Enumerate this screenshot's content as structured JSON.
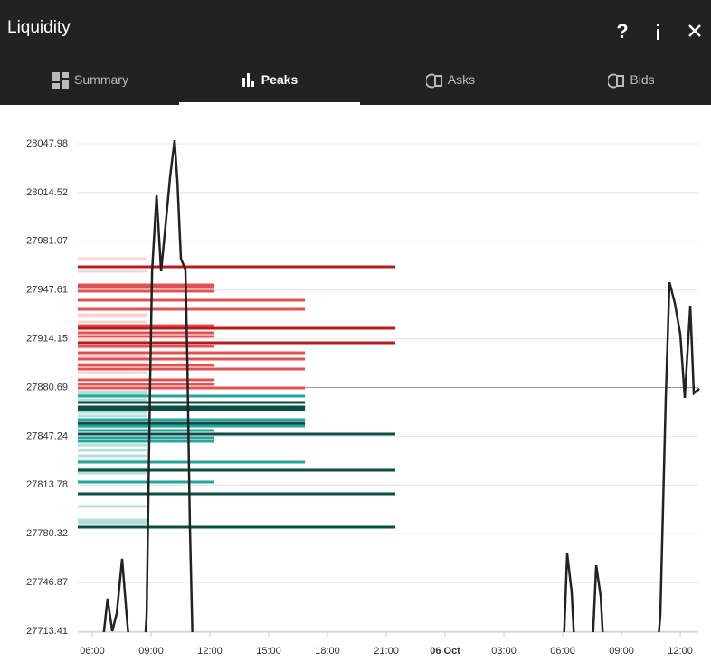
{
  "header": {
    "title": "Liquidity"
  },
  "tabs": [
    "Summary",
    "Peaks",
    "Asks",
    "Bids"
  ],
  "active_tab": 1,
  "chart_data": {
    "type": "liquidity-peaks",
    "xlim": [
      5.26,
      36.92
    ],
    "ylim": [
      27713.41,
      28047.98
    ],
    "xticks": [
      {
        "value": 6,
        "label": "06:00"
      },
      {
        "value": 9,
        "label": "09:00"
      },
      {
        "value": 12,
        "label": "12:00"
      },
      {
        "value": 15,
        "label": "15:00"
      },
      {
        "value": 18,
        "label": "18:00"
      },
      {
        "value": 21,
        "label": "21:00"
      },
      {
        "value": 24,
        "label": "06 Oct",
        "bold": true
      },
      {
        "value": 27,
        "label": "03:00"
      },
      {
        "value": 30,
        "label": "06:00"
      },
      {
        "value": 33,
        "label": "09:00"
      },
      {
        "value": 36,
        "label": "12:00"
      }
    ],
    "yticks": [
      28047.98,
      28014.52,
      27981.07,
      27947.61,
      27914.15,
      27880.69,
      27847.24,
      27813.78,
      27780.32,
      27746.87,
      27713.41
    ],
    "grid": true,
    "reference_line": 27880.69,
    "line": {
      "color": "#222",
      "x": [
        6.51,
        6.78,
        7.02,
        7.25,
        7.52,
        7.75,
        7.89,
        8.68,
        8.77,
        8.95,
        9.05,
        9.28,
        9.51,
        9.74,
        9.97,
        10.2,
        10.34,
        10.52,
        10.75,
        10.85,
        10.98,
        11.12,
        null,
        30.05,
        30.23,
        30.46,
        30.6,
        null,
        31.52,
        31.71,
        31.94,
        32.08,
        null,
        34.85,
        34.98,
        35.26,
        35.45,
        35.72,
        36.0,
        36.23,
        36.51,
        36.69,
        36.97
      ],
      "values": [
        27702.9,
        27735.8,
        27713.41,
        27725.8,
        27763.1,
        27724.6,
        27702.9,
        27702.9,
        27724.6,
        27886.0,
        27960.5,
        28012.6,
        27960.5,
        27992.7,
        28025.6,
        28050.4,
        28022.5,
        27969.1,
        27961.7,
        27898.4,
        27786.7,
        27702.9,
        null,
        27702.9,
        27766.8,
        27740.1,
        27702.9,
        null,
        27702.9,
        27758.7,
        27737.0,
        27702.9,
        null,
        27702.9,
        27724.6,
        27873.5,
        27953.0,
        27938.7,
        27917.0,
        27873.5,
        27936.9,
        27876.7,
        27879.8
      ]
    },
    "series": [
      {
        "color": "#fad4d4",
        "values": [
          27969.14,
          27960.45,
          27930.66,
          27929.41,
          27925.69,
          27920.72,
          27913.28,
          27908.31,
          27902.1,
          27897.14,
          27890.93
        ],
        "x_end": [
          8.77,
          8.77,
          8.77,
          8.77,
          8.77,
          8.77,
          8.77,
          8.77,
          8.77,
          8.77,
          8.77
        ]
      },
      {
        "color": "#e05252",
        "values": [
          27951.14,
          27949.28,
          27946.79,
          27940.59,
          27934.38,
          27923.21,
          27918.24,
          27915.76,
          27908.93,
          27904.59,
          27900.24,
          27895.9,
          27893.41,
          27885.96,
          27882.86,
          27880.38
        ],
        "x_end": [
          12.23,
          12.23,
          12.23,
          16.85,
          16.85,
          12.23,
          12.23,
          12.23,
          12.23,
          16.85,
          16.85,
          12.23,
          16.85,
          12.23,
          12.23,
          16.85
        ]
      },
      {
        "color": "#b71c1c",
        "values": [
          27963.55,
          27921.34,
          27911.41
        ],
        "x_end": [
          21.46,
          21.46,
          21.46
        ]
      },
      {
        "color": "#b2dfd8",
        "values": [
          27877.9,
          27876.03,
          27872.31,
          27863.62,
          27861.14,
          27853.69,
          27841.27,
          27837.55,
          27833.83,
          27830.1,
          27825.14,
          27822.03,
          27799.07,
          27789.76,
          27787.89
        ],
        "x_end": [
          8.77,
          8.77,
          8.77,
          8.77,
          8.77,
          8.77,
          8.77,
          8.77,
          8.77,
          8.77,
          8.77,
          8.77,
          8.77,
          8.77,
          8.77
        ]
      },
      {
        "color": "#26a69a",
        "values": [
          27874.79,
          27858.65,
          27854.31,
          27851.21,
          27846.24,
          27843.76,
          27829.48,
          27815.83
        ],
        "x_end": [
          16.85,
          16.85,
          16.85,
          12.23,
          12.23,
          12.23,
          16.85,
          12.23
        ]
      },
      {
        "color": "#0b4f44",
        "values": [
          27870.45,
          27867.34,
          27865.48,
          27856.17,
          27848.72,
          27823.89,
          27807.76,
          27784.79
        ],
        "x_end": [
          16.85,
          16.85,
          16.85,
          16.85,
          21.46,
          21.46,
          21.46,
          21.46
        ]
      }
    ]
  }
}
